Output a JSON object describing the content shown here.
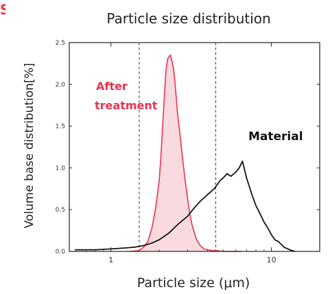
{
  "figure": {
    "corner_mark": "S",
    "colors": {
      "after": "#e8344e",
      "after_fill": "#f8d3da",
      "material": "#111111",
      "frame": "#222222",
      "guides": "#444444"
    }
  },
  "chart_data": {
    "type": "line",
    "title": "Particle size distribution",
    "xlabel": "Particle size (μm)",
    "ylabel": "Volume base distribution[%]",
    "xscale": "log",
    "xlim": [
      0.55,
      20
    ],
    "ylim": [
      0,
      2.5
    ],
    "x_ticks": [
      1,
      10
    ],
    "x_tick_labels": [
      "1",
      "10"
    ],
    "y_ticks": [
      0,
      0.5,
      1.0,
      1.5,
      2.0,
      2.5
    ],
    "y_tick_labels": [
      "0.0",
      "0.5",
      "1.0",
      "1.5",
      "2.0",
      "2.5"
    ],
    "grid": false,
    "guide_lines_x": [
      1.5,
      4.5
    ],
    "series": [
      {
        "name": "After treatment",
        "filled": true,
        "x": [
          1.3,
          1.5,
          1.6,
          1.7,
          1.8,
          1.9,
          2.0,
          2.05,
          2.1,
          2.15,
          2.2,
          2.25,
          2.3,
          2.35,
          2.4,
          2.45,
          2.5,
          2.55,
          2.6,
          2.7,
          2.8,
          2.9,
          3.0,
          3.1,
          3.2,
          3.4,
          3.6,
          3.8,
          4.0,
          4.3,
          4.6,
          5.0,
          6.0,
          6.5
        ],
        "y": [
          0,
          0.01,
          0.05,
          0.12,
          0.28,
          0.52,
          0.85,
          1.15,
          1.5,
          1.85,
          2.15,
          2.3,
          2.33,
          2.35,
          2.28,
          2.2,
          2.05,
          1.85,
          1.65,
          1.38,
          1.1,
          0.85,
          0.64,
          0.45,
          0.32,
          0.15,
          0.07,
          0.03,
          0.02,
          0.01,
          0.01,
          0,
          0,
          0
        ]
      },
      {
        "name": "Material",
        "filled": false,
        "x": [
          0.6,
          0.8,
          1.0,
          1.2,
          1.4,
          1.6,
          1.8,
          2.0,
          2.3,
          2.6,
          3.0,
          3.3,
          3.6,
          4.0,
          4.4,
          4.8,
          5.0,
          5.3,
          5.6,
          6.0,
          6.3,
          6.6,
          7.0,
          7.5,
          8.0,
          8.5,
          9.0,
          9.5,
          10.0,
          10.5,
          11.0,
          12.0,
          13.0,
          14.0
        ],
        "y": [
          0.02,
          0.02,
          0.03,
          0.04,
          0.05,
          0.07,
          0.1,
          0.14,
          0.22,
          0.32,
          0.42,
          0.52,
          0.6,
          0.68,
          0.75,
          0.85,
          0.88,
          0.93,
          0.9,
          0.95,
          1.0,
          1.08,
          0.88,
          0.7,
          0.55,
          0.45,
          0.35,
          0.28,
          0.2,
          0.14,
          0.12,
          0.05,
          0.02,
          0.0
        ]
      }
    ],
    "annotations": [
      {
        "text": "After",
        "series": "After treatment"
      },
      {
        "text": "treatment",
        "series": "After treatment"
      },
      {
        "text": "Material",
        "series": "Material"
      }
    ]
  }
}
